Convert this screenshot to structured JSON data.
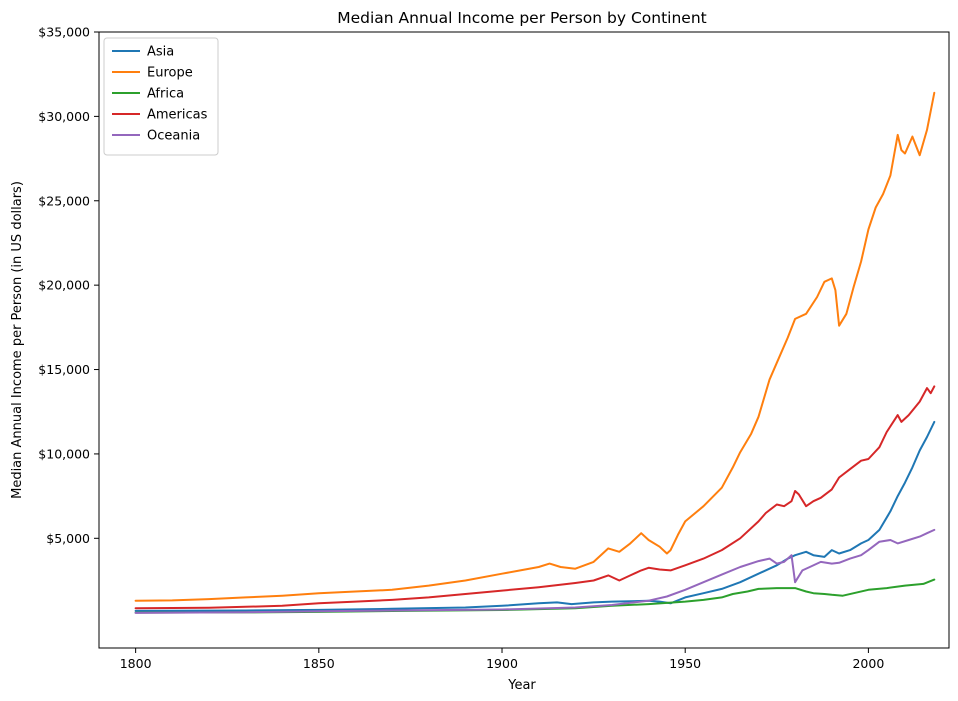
{
  "chart_data": {
    "type": "line",
    "title": "Median Annual Income per Person by Continent",
    "xlabel": "Year",
    "ylabel": "Median Annual Income per Person (in US dollars)",
    "xlim": [
      1790,
      2022
    ],
    "ylim": [
      -1500,
      35000
    ],
    "xticks": [
      1800,
      1850,
      1900,
      1950,
      2000
    ],
    "xtick_labels": [
      "1800",
      "1850",
      "1900",
      "1950",
      "2000"
    ],
    "yticks": [
      5000,
      10000,
      15000,
      20000,
      25000,
      30000,
      35000
    ],
    "ytick_labels": [
      "$5,000",
      "$10,000",
      "$15,000",
      "$20,000",
      "$25,000",
      "$30,000",
      "$35,000"
    ],
    "grid": false,
    "legend_position": "top-left",
    "series": [
      {
        "name": "Asia",
        "color": "#1f77b4",
        "points": [
          [
            1800,
            700
          ],
          [
            1830,
            720
          ],
          [
            1850,
            760
          ],
          [
            1870,
            820
          ],
          [
            1890,
            900
          ],
          [
            1900,
            1000
          ],
          [
            1910,
            1150
          ],
          [
            1915,
            1200
          ],
          [
            1919,
            1100
          ],
          [
            1925,
            1200
          ],
          [
            1930,
            1250
          ],
          [
            1935,
            1270
          ],
          [
            1940,
            1300
          ],
          [
            1943,
            1250
          ],
          [
            1946,
            1150
          ],
          [
            1950,
            1500
          ],
          [
            1955,
            1750
          ],
          [
            1960,
            2000
          ],
          [
            1965,
            2400
          ],
          [
            1970,
            2900
          ],
          [
            1975,
            3400
          ],
          [
            1978,
            3800
          ],
          [
            1980,
            4000
          ],
          [
            1983,
            4200
          ],
          [
            1985,
            4000
          ],
          [
            1988,
            3900
          ],
          [
            1990,
            4300
          ],
          [
            1992,
            4100
          ],
          [
            1995,
            4300
          ],
          [
            1998,
            4700
          ],
          [
            2000,
            4900
          ],
          [
            2003,
            5500
          ],
          [
            2006,
            6600
          ],
          [
            2008,
            7500
          ],
          [
            2010,
            8300
          ],
          [
            2012,
            9200
          ],
          [
            2014,
            10200
          ],
          [
            2016,
            11000
          ],
          [
            2018,
            11900
          ]
        ]
      },
      {
        "name": "Europe",
        "color": "#ff7f0e",
        "points": [
          [
            1800,
            1300
          ],
          [
            1810,
            1320
          ],
          [
            1820,
            1400
          ],
          [
            1830,
            1500
          ],
          [
            1840,
            1600
          ],
          [
            1850,
            1750
          ],
          [
            1860,
            1850
          ],
          [
            1870,
            1950
          ],
          [
            1880,
            2200
          ],
          [
            1890,
            2500
          ],
          [
            1900,
            2900
          ],
          [
            1905,
            3100
          ],
          [
            1910,
            3300
          ],
          [
            1913,
            3500
          ],
          [
            1916,
            3300
          ],
          [
            1920,
            3200
          ],
          [
            1925,
            3600
          ],
          [
            1929,
            4400
          ],
          [
            1932,
            4200
          ],
          [
            1935,
            4700
          ],
          [
            1938,
            5300
          ],
          [
            1940,
            4900
          ],
          [
            1943,
            4500
          ],
          [
            1945,
            4100
          ],
          [
            1946,
            4300
          ],
          [
            1948,
            5200
          ],
          [
            1950,
            6000
          ],
          [
            1955,
            6900
          ],
          [
            1960,
            8000
          ],
          [
            1963,
            9200
          ],
          [
            1965,
            10100
          ],
          [
            1968,
            11200
          ],
          [
            1970,
            12200
          ],
          [
            1973,
            14400
          ],
          [
            1975,
            15400
          ],
          [
            1978,
            16900
          ],
          [
            1980,
            18000
          ],
          [
            1983,
            18300
          ],
          [
            1986,
            19300
          ],
          [
            1988,
            20200
          ],
          [
            1990,
            20400
          ],
          [
            1991,
            19700
          ],
          [
            1992,
            17600
          ],
          [
            1994,
            18300
          ],
          [
            1996,
            19900
          ],
          [
            1998,
            21400
          ],
          [
            2000,
            23300
          ],
          [
            2002,
            24600
          ],
          [
            2004,
            25400
          ],
          [
            2006,
            26500
          ],
          [
            2008,
            28900
          ],
          [
            2009,
            28000
          ],
          [
            2010,
            27800
          ],
          [
            2012,
            28800
          ],
          [
            2014,
            27700
          ],
          [
            2016,
            29200
          ],
          [
            2018,
            31400
          ]
        ]
      },
      {
        "name": "Africa",
        "color": "#2ca02c",
        "points": [
          [
            1800,
            600
          ],
          [
            1830,
            610
          ],
          [
            1850,
            640
          ],
          [
            1870,
            690
          ],
          [
            1900,
            750
          ],
          [
            1920,
            860
          ],
          [
            1930,
            1000
          ],
          [
            1940,
            1100
          ],
          [
            1950,
            1250
          ],
          [
            1955,
            1350
          ],
          [
            1960,
            1500
          ],
          [
            1963,
            1700
          ],
          [
            1967,
            1850
          ],
          [
            1970,
            2000
          ],
          [
            1975,
            2050
          ],
          [
            1980,
            2050
          ],
          [
            1983,
            1850
          ],
          [
            1985,
            1750
          ],
          [
            1988,
            1700
          ],
          [
            1990,
            1650
          ],
          [
            1993,
            1600
          ],
          [
            1996,
            1750
          ],
          [
            2000,
            1950
          ],
          [
            2005,
            2050
          ],
          [
            2010,
            2200
          ],
          [
            2015,
            2300
          ],
          [
            2018,
            2550
          ]
        ]
      },
      {
        "name": "Americas",
        "color": "#d62728",
        "points": [
          [
            1800,
            850
          ],
          [
            1820,
            880
          ],
          [
            1840,
            1000
          ],
          [
            1850,
            1150
          ],
          [
            1860,
            1250
          ],
          [
            1870,
            1350
          ],
          [
            1880,
            1500
          ],
          [
            1890,
            1700
          ],
          [
            1900,
            1900
          ],
          [
            1910,
            2100
          ],
          [
            1920,
            2350
          ],
          [
            1925,
            2500
          ],
          [
            1929,
            2800
          ],
          [
            1932,
            2500
          ],
          [
            1935,
            2800
          ],
          [
            1938,
            3100
          ],
          [
            1940,
            3250
          ],
          [
            1943,
            3150
          ],
          [
            1946,
            3100
          ],
          [
            1950,
            3400
          ],
          [
            1955,
            3800
          ],
          [
            1960,
            4300
          ],
          [
            1965,
            5000
          ],
          [
            1970,
            6000
          ],
          [
            1972,
            6500
          ],
          [
            1975,
            7000
          ],
          [
            1977,
            6900
          ],
          [
            1979,
            7200
          ],
          [
            1980,
            7800
          ],
          [
            1981,
            7600
          ],
          [
            1983,
            6900
          ],
          [
            1985,
            7200
          ],
          [
            1987,
            7400
          ],
          [
            1990,
            7900
          ],
          [
            1992,
            8600
          ],
          [
            1995,
            9100
          ],
          [
            1998,
            9600
          ],
          [
            2000,
            9700
          ],
          [
            2003,
            10400
          ],
          [
            2005,
            11300
          ],
          [
            2008,
            12300
          ],
          [
            2009,
            11900
          ],
          [
            2011,
            12300
          ],
          [
            2014,
            13100
          ],
          [
            2016,
            13900
          ],
          [
            2017,
            13600
          ],
          [
            2018,
            14000
          ]
        ]
      },
      {
        "name": "Oceania",
        "color": "#9467bd",
        "points": [
          [
            1800,
            580
          ],
          [
            1830,
            620
          ],
          [
            1850,
            680
          ],
          [
            1870,
            720
          ],
          [
            1900,
            780
          ],
          [
            1920,
            900
          ],
          [
            1930,
            1050
          ],
          [
            1940,
            1300
          ],
          [
            1945,
            1550
          ],
          [
            1950,
            1950
          ],
          [
            1955,
            2400
          ],
          [
            1960,
            2850
          ],
          [
            1965,
            3300
          ],
          [
            1970,
            3650
          ],
          [
            1973,
            3800
          ],
          [
            1975,
            3500
          ],
          [
            1977,
            3600
          ],
          [
            1979,
            4000
          ],
          [
            1980,
            2400
          ],
          [
            1982,
            3100
          ],
          [
            1984,
            3300
          ],
          [
            1987,
            3600
          ],
          [
            1990,
            3500
          ],
          [
            1992,
            3550
          ],
          [
            1995,
            3800
          ],
          [
            1998,
            4000
          ],
          [
            2000,
            4300
          ],
          [
            2003,
            4800
          ],
          [
            2006,
            4900
          ],
          [
            2008,
            4700
          ],
          [
            2011,
            4900
          ],
          [
            2014,
            5100
          ],
          [
            2016,
            5300
          ],
          [
            2018,
            5500
          ]
        ]
      }
    ]
  }
}
